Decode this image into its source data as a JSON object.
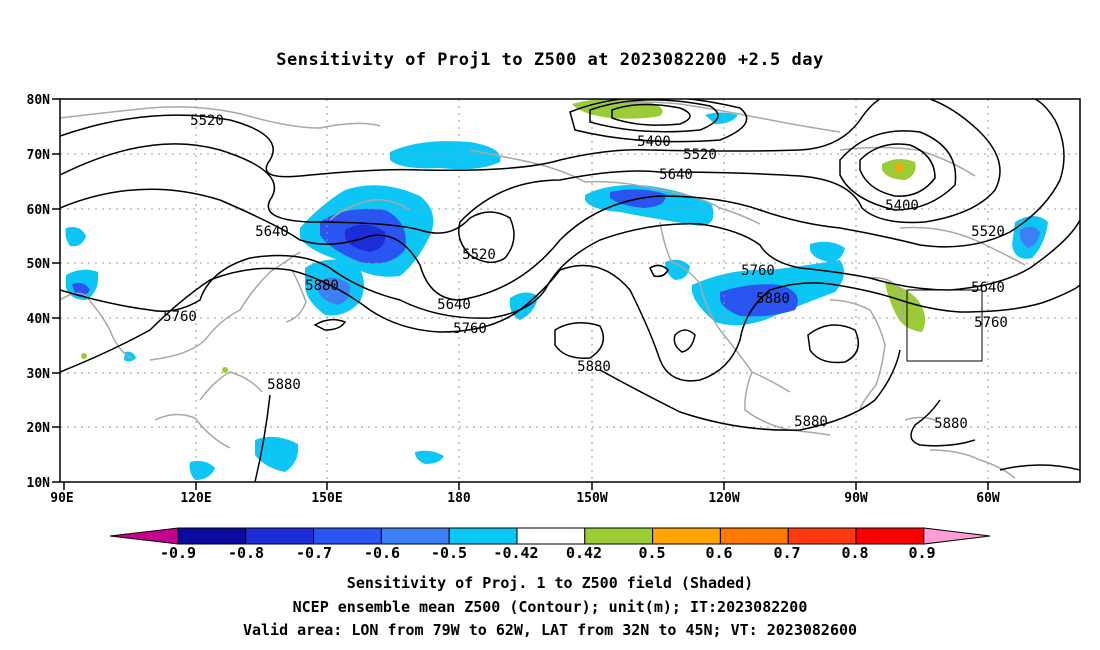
{
  "title": "Sensitivity of Proj1 to Z500 at 2023082200 +2.5 day",
  "lat_labels": [
    "10N",
    "20N",
    "30N",
    "40N",
    "50N",
    "60N",
    "70N",
    "80N"
  ],
  "lon_labels": [
    "90E",
    "120E",
    "150E",
    "180",
    "150W",
    "120W",
    "90W",
    "60W"
  ],
  "contour_labels": [
    "5520",
    "5400",
    "5520",
    "5640",
    "5400",
    "5520",
    "5640",
    "5520",
    "5760",
    "5640",
    "5880",
    "5640",
    "5760",
    "5880",
    "5760",
    "5880",
    "5880",
    "5880",
    "5760",
    "5880"
  ],
  "colorbar": {
    "labels": [
      "-0.9",
      "-0.8",
      "-0.7",
      "-0.6",
      "-0.5",
      "-0.42",
      "0.42",
      "0.5",
      "0.6",
      "0.7",
      "0.8",
      "0.9"
    ],
    "colors": [
      "#c4008f",
      "#0a0aa0",
      "#1c2dd8",
      "#2a55f0",
      "#3d7ff5",
      "#0cc7f5",
      "#ffffff",
      "#9bcc38",
      "#ffa400",
      "#ff7800",
      "#ff3a10",
      "#ff0000",
      "#ff9ed6"
    ]
  },
  "captions": [
    "Sensitivity of Proj. 1 to Z500 field (Shaded)",
    "NCEP ensemble mean Z500 (Contour); unit(m); IT:2023082200",
    "Valid area: LON from 79W to 62W, LAT from 32N to 45N; VT: 2023082600"
  ]
}
